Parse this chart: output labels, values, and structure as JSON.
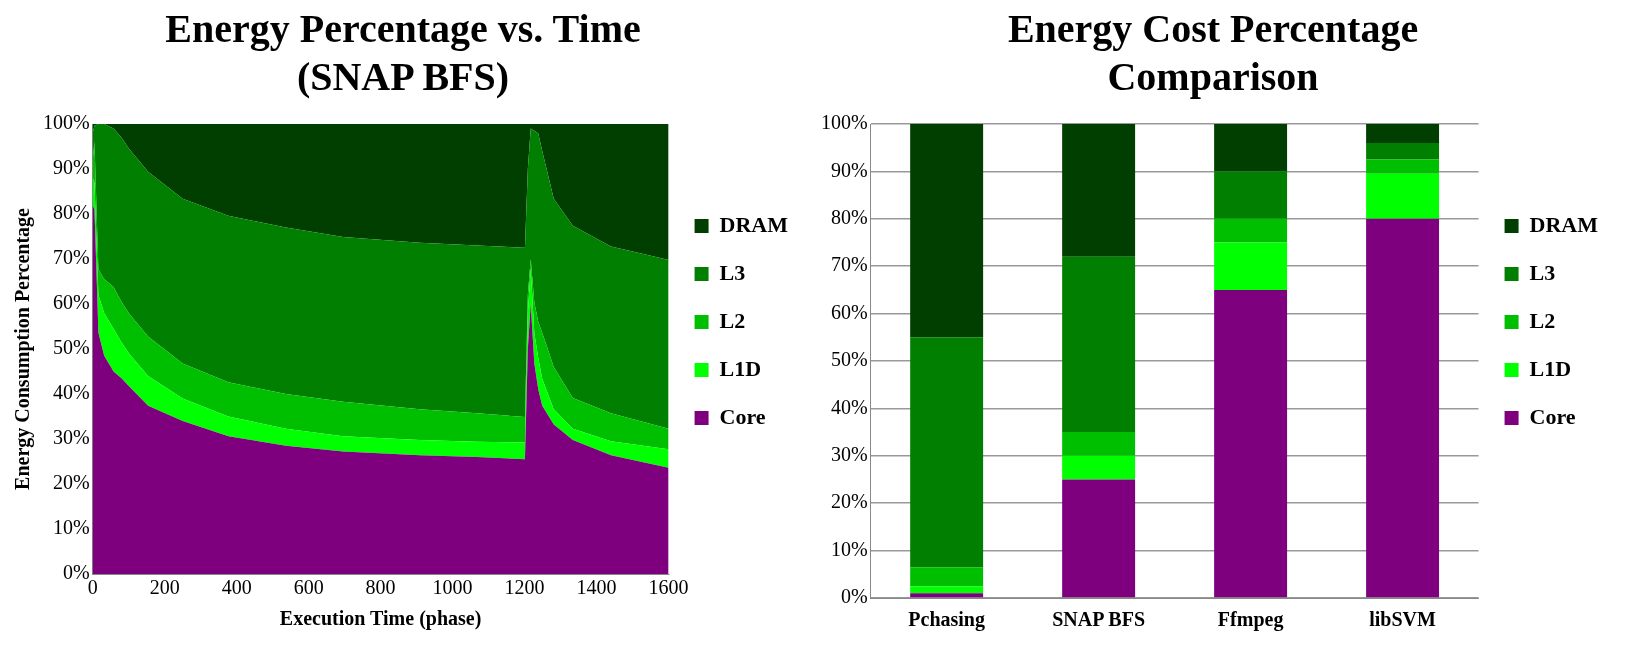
{
  "chart_data": [
    {
      "type": "area",
      "title": "Energy Percentage vs. Time (SNAP BFS)",
      "xlabel": "Execution Time (phase)",
      "ylabel": "Energy Consumption Percentage",
      "stacked": true,
      "legend": "right",
      "grid": false,
      "x": [
        0,
        5,
        16,
        32,
        58,
        80,
        101,
        154,
        250,
        377,
        537,
        696,
        909,
        1068,
        1201,
        1209,
        1217,
        1227,
        1238,
        1249,
        1281,
        1334,
        1440,
        1600
      ],
      "xlim": [
        0,
        1600
      ],
      "xticks": [
        0,
        200,
        400,
        600,
        800,
        1000,
        1200,
        1400,
        1600
      ],
      "ylim": [
        0,
        100
      ],
      "yticks": [
        {
          "value": 0,
          "label": "0%"
        },
        {
          "value": 10,
          "label": "10%"
        },
        {
          "value": 20,
          "label": "20%"
        },
        {
          "value": 30,
          "label": "30%"
        },
        {
          "value": 40,
          "label": "40%"
        },
        {
          "value": 50,
          "label": "50%"
        },
        {
          "value": 60,
          "label": "60%"
        },
        {
          "value": 70,
          "label": "70%"
        },
        {
          "value": 80,
          "label": "80%"
        },
        {
          "value": 90,
          "label": "90%"
        },
        {
          "value": 100,
          "label": "100%"
        }
      ],
      "series": [
        {
          "name": "Core",
          "color": "#7f007f",
          "values": [
            82,
            81,
            53.6,
            48.5,
            45,
            43.5,
            41.7,
            37.4,
            34,
            30.6,
            28.5,
            27.2,
            26.4,
            26,
            25.5,
            50,
            60,
            46.8,
            41,
            37.4,
            33.2,
            29.8,
            26.4,
            23.6
          ]
        },
        {
          "name": "L1D",
          "color": "#00ff00",
          "values": [
            6,
            6,
            8.4,
            9.5,
            9.5,
            8,
            7.3,
            6.6,
            5,
            4.4,
            3.8,
            3.4,
            3.4,
            3.4,
            3.7,
            8,
            8,
            6.8,
            7,
            6,
            3.4,
            2.5,
            3.1,
            4.1
          ]
        },
        {
          "name": "L2",
          "color": "#00bf00",
          "values": [
            4,
            9,
            5.7,
            7.5,
            9.3,
            9,
            8.9,
            8.8,
            7.8,
            7.6,
            7.7,
            7.7,
            6.8,
            6.3,
            5.7,
            4,
            2,
            6.8,
            8,
            10.2,
            9.4,
            6.8,
            6.2,
            4.6
          ]
        },
        {
          "name": "L3",
          "color": "#007f00",
          "values": [
            6,
            3.6,
            32.3,
            34.5,
            35.2,
            36.5,
            36.6,
            36.6,
            36.6,
            37,
            37,
            36.6,
            37,
            37.3,
            37.6,
            28,
            29,
            38.1,
            41.9,
            40.4,
            37.4,
            38.3,
            37.1,
            37.5
          ]
        },
        {
          "name": "DRAM",
          "color": "#003f00",
          "values": [
            2,
            0.4,
            0,
            0,
            1,
            3,
            5.5,
            10.6,
            16.6,
            20.4,
            23,
            25.1,
            26.4,
            27,
            27.5,
            10,
            1,
            1.5,
            2.1,
            6,
            16.6,
            22.6,
            27.2,
            30.2
          ]
        }
      ]
    },
    {
      "type": "bar",
      "title": "Energy Cost Percentage Comparison",
      "stacked": true,
      "legend": "right",
      "grid": "y",
      "categories": [
        "Pchasing",
        "SNAP BFS",
        "Ffmpeg",
        "libSVM"
      ],
      "ylim": [
        0,
        100
      ],
      "yticks": [
        {
          "value": 0,
          "label": "0%"
        },
        {
          "value": 10,
          "label": "10%"
        },
        {
          "value": 20,
          "label": "20%"
        },
        {
          "value": 30,
          "label": "30%"
        },
        {
          "value": 40,
          "label": "40%"
        },
        {
          "value": 50,
          "label": "50%"
        },
        {
          "value": 60,
          "label": "60%"
        },
        {
          "value": 70,
          "label": "70%"
        },
        {
          "value": 80,
          "label": "80%"
        },
        {
          "value": 90,
          "label": "90%"
        },
        {
          "value": 100,
          "label": "100%"
        }
      ],
      "series": [
        {
          "name": "Core",
          "color": "#7f007f",
          "values": [
            1,
            25,
            65,
            80
          ]
        },
        {
          "name": "L1D",
          "color": "#00ff00",
          "values": [
            1.5,
            5,
            10,
            9.5
          ]
        },
        {
          "name": "L2",
          "color": "#00bf00",
          "values": [
            4,
            5,
            5,
            3
          ]
        },
        {
          "name": "L3",
          "color": "#007f00",
          "values": [
            48.5,
            37,
            10,
            3.5
          ]
        },
        {
          "name": "DRAM",
          "color": "#003f00",
          "values": [
            45,
            28,
            10,
            4
          ]
        }
      ]
    }
  ]
}
